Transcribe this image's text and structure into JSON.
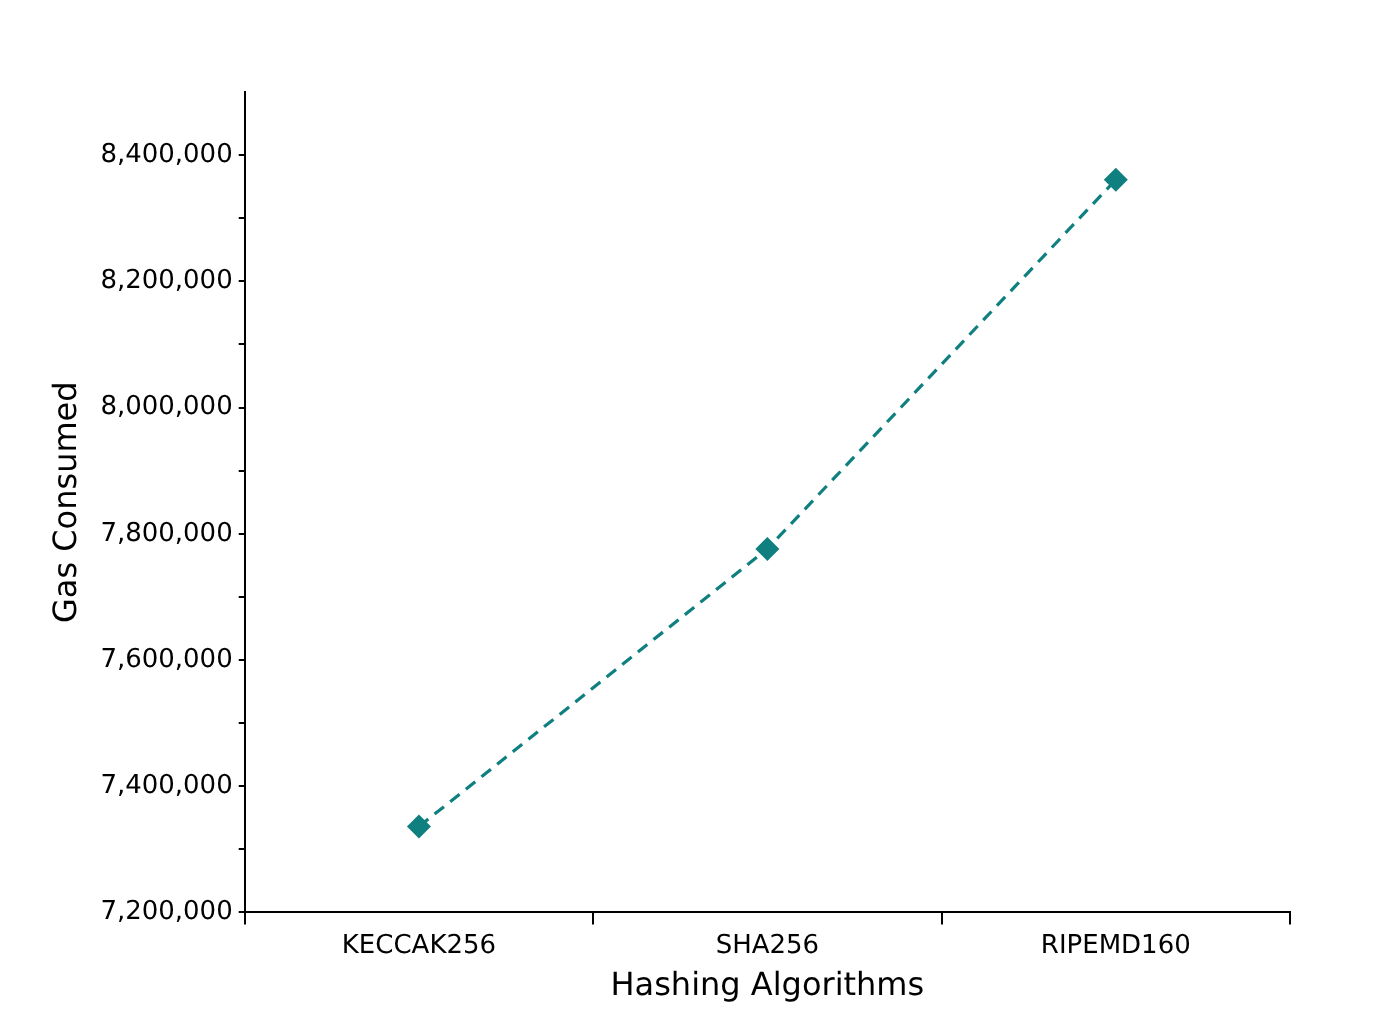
{
  "chart_data": {
    "type": "line",
    "xlabel": "Hashing Algorithms",
    "ylabel": "Gas Consumed",
    "categories": [
      "KECCAK256",
      "SHA256",
      "RIPEMD160"
    ],
    "series": [
      {
        "color": "#0f7f7f",
        "values": [
          7336000,
          7776000,
          8361000
        ]
      }
    ],
    "ylim": [
      7200000,
      8500000
    ],
    "yticks": [
      {
        "value": 7200000,
        "label": "7,200,000"
      },
      {
        "value": 7300000,
        "label": null
      },
      {
        "value": 7400000,
        "label": "7,400,000"
      },
      {
        "value": 7500000,
        "label": null
      },
      {
        "value": 7600000,
        "label": "7,600,000"
      },
      {
        "value": 7700000,
        "label": null
      },
      {
        "value": 7800000,
        "label": "7,800,000"
      },
      {
        "value": 7900000,
        "label": null
      },
      {
        "value": 8000000,
        "label": "8,000,000"
      },
      {
        "value": 8100000,
        "label": null
      },
      {
        "value": 8200000,
        "label": "8,200,000"
      },
      {
        "value": 8300000,
        "label": null
      },
      {
        "value": 8400000,
        "label": "8,400,000"
      }
    ],
    "marker": "diamond",
    "line_style": "dashed",
    "grid": false,
    "legend": false
  }
}
